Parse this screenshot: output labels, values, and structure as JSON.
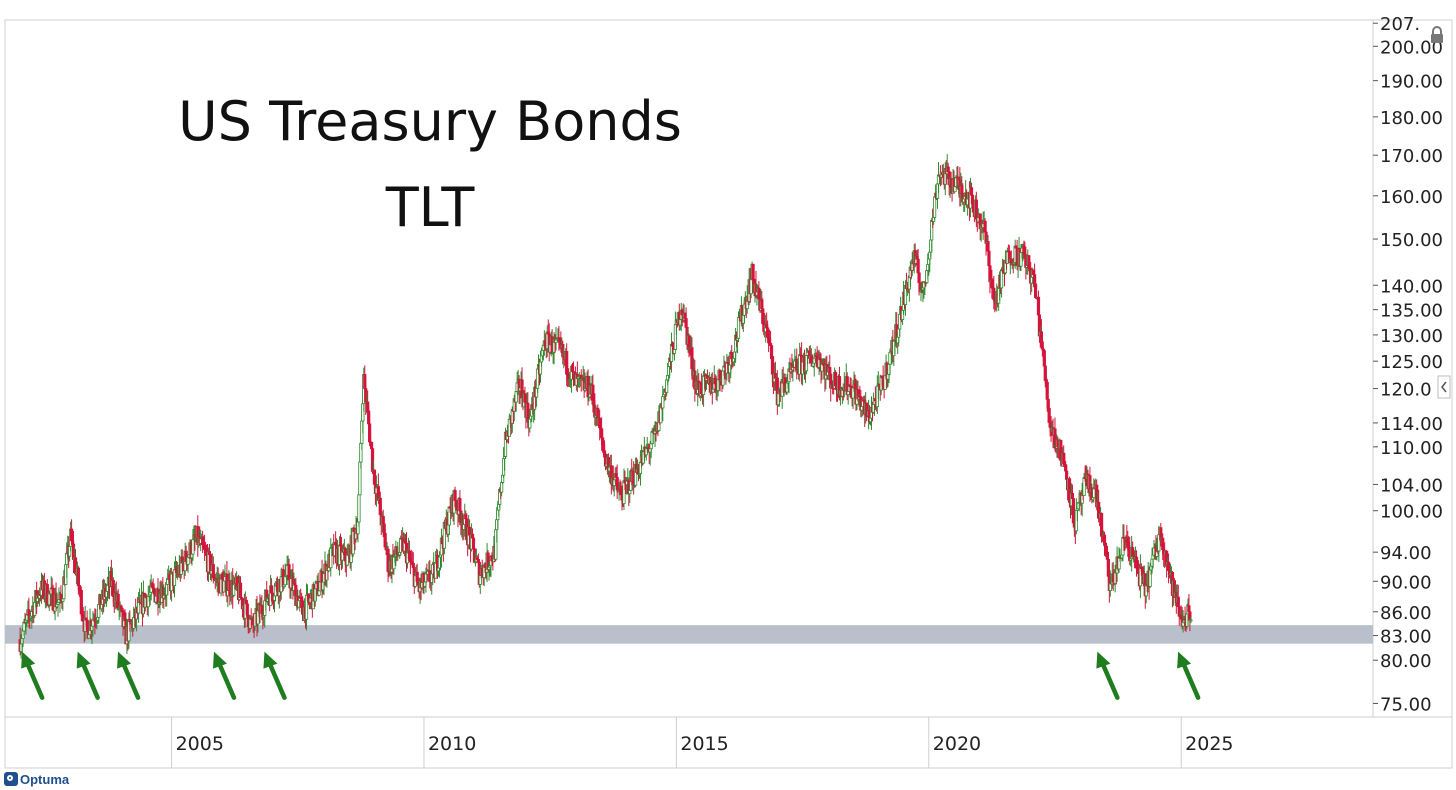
{
  "title": {
    "line1": "US Treasury Bonds",
    "line2": "TLT"
  },
  "branding": {
    "logo_text": "Optuma"
  },
  "colors": {
    "up_candle": "#2e8b2e",
    "down_candle": "#d4143c",
    "support_zone": "#b9c0cb",
    "arrow": "#1f7d1f",
    "axis_text": "#222222",
    "grid_line": "#cfcfcf"
  },
  "chart_data": {
    "type": "candlestick",
    "title": "US Treasury Bonds TLT",
    "scale": "log",
    "x_range": [
      2001.7,
      2028.8
    ],
    "y_range": [
      73.5,
      208
    ],
    "x_ticks": [
      {
        "value": 2005,
        "label": "2005"
      },
      {
        "value": 2010,
        "label": "2010"
      },
      {
        "value": 2015,
        "label": "2015"
      },
      {
        "value": 2020,
        "label": "2020"
      },
      {
        "value": 2025,
        "label": "2025"
      }
    ],
    "y_ticks": [
      {
        "value": 207,
        "label": "207."
      },
      {
        "value": 200,
        "label": "200.00"
      },
      {
        "value": 190,
        "label": "190.00"
      },
      {
        "value": 180,
        "label": "180.00"
      },
      {
        "value": 170,
        "label": "170.00"
      },
      {
        "value": 160,
        "label": "160.00"
      },
      {
        "value": 150,
        "label": "150.00"
      },
      {
        "value": 140,
        "label": "140.00"
      },
      {
        "value": 135,
        "label": "135.00"
      },
      {
        "value": 130,
        "label": "130.00"
      },
      {
        "value": 125,
        "label": "125.00"
      },
      {
        "value": 120,
        "label": "120.0"
      },
      {
        "value": 114,
        "label": "114.00"
      },
      {
        "value": 110,
        "label": "110.00"
      },
      {
        "value": 104,
        "label": "104.00"
      },
      {
        "value": 100,
        "label": "100.00"
      },
      {
        "value": 94,
        "label": "94.00"
      },
      {
        "value": 90,
        "label": "90.00"
      },
      {
        "value": 86,
        "label": "86.00"
      },
      {
        "value": 83,
        "label": "83.00"
      },
      {
        "value": 80,
        "label": "80.00"
      },
      {
        "value": 75,
        "label": "75.00"
      }
    ],
    "support_zone": {
      "low": 82.0,
      "high": 84.3
    },
    "arrows_at": [
      2002.0,
      2003.1,
      2003.9,
      2005.8,
      2006.8,
      2023.3,
      2024.9
    ],
    "price_path": [
      [
        2002.0,
        82.5
      ],
      [
        2002.4,
        89
      ],
      [
        2002.8,
        87
      ],
      [
        2003.0,
        96
      ],
      [
        2003.3,
        83.5
      ],
      [
        2003.6,
        87
      ],
      [
        2003.8,
        90
      ],
      [
        2004.1,
        83
      ],
      [
        2004.5,
        88
      ],
      [
        2004.9,
        89
      ],
      [
        2005.2,
        92
      ],
      [
        2005.5,
        96
      ],
      [
        2005.9,
        90
      ],
      [
        2006.3,
        89
      ],
      [
        2006.6,
        84
      ],
      [
        2006.9,
        88
      ],
      [
        2007.3,
        91
      ],
      [
        2007.6,
        86
      ],
      [
        2007.9,
        89
      ],
      [
        2008.2,
        94
      ],
      [
        2008.5,
        93
      ],
      [
        2008.7,
        99
      ],
      [
        2008.8,
        122
      ],
      [
        2009.0,
        106
      ],
      [
        2009.3,
        92
      ],
      [
        2009.6,
        95
      ],
      [
        2009.9,
        89
      ],
      [
        2010.2,
        91
      ],
      [
        2010.6,
        102
      ],
      [
        2010.9,
        96
      ],
      [
        2011.1,
        91
      ],
      [
        2011.4,
        94
      ],
      [
        2011.6,
        110
      ],
      [
        2011.9,
        121
      ],
      [
        2012.1,
        114
      ],
      [
        2012.4,
        129
      ],
      [
        2012.7,
        127
      ],
      [
        2013.0,
        121
      ],
      [
        2013.3,
        120
      ],
      [
        2013.6,
        108
      ],
      [
        2013.9,
        102
      ],
      [
        2014.2,
        106
      ],
      [
        2014.6,
        112
      ],
      [
        2014.9,
        126
      ],
      [
        2015.1,
        136
      ],
      [
        2015.4,
        120
      ],
      [
        2015.8,
        121
      ],
      [
        2016.1,
        126
      ],
      [
        2016.5,
        142
      ],
      [
        2016.8,
        130
      ],
      [
        2017.0,
        119
      ],
      [
        2017.4,
        124
      ],
      [
        2017.8,
        126
      ],
      [
        2018.1,
        121
      ],
      [
        2018.5,
        120
      ],
      [
        2018.8,
        115
      ],
      [
        2019.1,
        121
      ],
      [
        2019.4,
        132
      ],
      [
        2019.7,
        146
      ],
      [
        2019.9,
        138
      ],
      [
        2020.2,
        166
      ],
      [
        2020.5,
        163
      ],
      [
        2020.8,
        160
      ],
      [
        2021.1,
        152
      ],
      [
        2021.3,
        136
      ],
      [
        2021.6,
        147
      ],
      [
        2021.9,
        146
      ],
      [
        2022.1,
        140
      ],
      [
        2022.4,
        114
      ],
      [
        2022.7,
        107
      ],
      [
        2022.9,
        98
      ],
      [
        2023.1,
        104
      ],
      [
        2023.3,
        103
      ],
      [
        2023.6,
        89
      ],
      [
        2023.9,
        96
      ],
      [
        2024.1,
        92
      ],
      [
        2024.3,
        89
      ],
      [
        2024.6,
        97
      ],
      [
        2024.8,
        90
      ],
      [
        2025.0,
        85
      ],
      [
        2025.2,
        86
      ]
    ]
  }
}
